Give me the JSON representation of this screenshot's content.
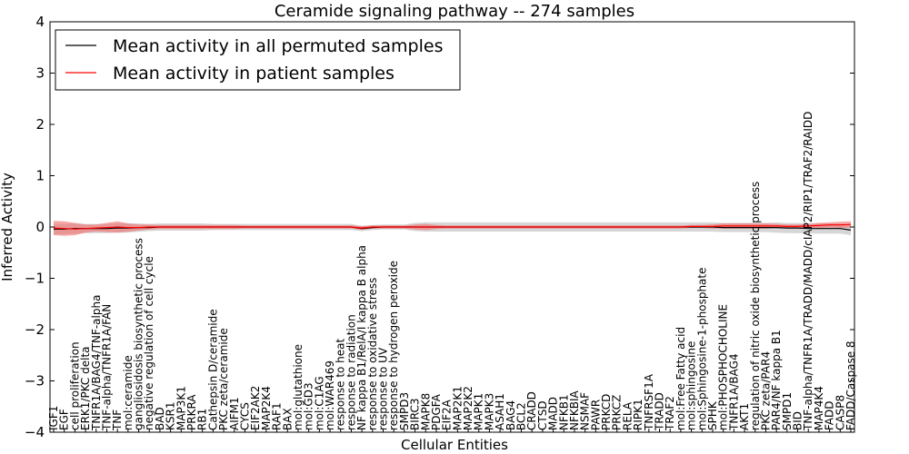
{
  "chart_data": {
    "type": "line",
    "title": "Ceramide signaling pathway -- 274 samples",
    "xlabel": "Cellular Entities",
    "ylabel": "Inferred Activity",
    "ylim": [
      -4,
      4
    ],
    "yticks": [
      "4",
      "3",
      "2",
      "1",
      "0",
      "−1",
      "−2",
      "−3",
      "−4"
    ],
    "grid": false,
    "legend_position": "top-left",
    "categories": [
      "IGF1",
      "EGF",
      "cell proliferation",
      "ERK1/PKC delta",
      "TNFR1A/BAG4/TNF-alpha",
      "TNF-alpha/TNFR1A/FAN",
      "TNF",
      "mol:ceramide",
      "gangliosidosis biosynthetic process",
      "negative regulation of cell cycle",
      "BAD",
      "KSR1",
      "MAP3K1",
      "PRKRA",
      "RB1",
      "Cathepsin D/ceramide",
      "PKC zeta/ceramide",
      "AIFM1",
      "CYCS",
      "EIF2AK2",
      "MAP2K4",
      "RAF1",
      "BAX",
      "mol:glutathione",
      "mol:GD3",
      "mol:C1AG",
      "mol:WAR469",
      "response to heat",
      "response to radiation",
      "NF kappa B1/RelA/I kappa B alpha",
      "response to oxidative stress",
      "response to UV",
      "response to hydrogen peroxide",
      "SMPD3",
      "BIRC3",
      "MAPK8",
      "PDGFA",
      "EIF2A",
      "MAP2K1",
      "MAP2K2",
      "MAPK1",
      "MAPK3",
      "ASAH1",
      "BAG4",
      "BCL2",
      "CRADD",
      "CTSD",
      "MADD",
      "NFKB1",
      "NFKBIA",
      "NSMAF",
      "PAWR",
      "PRKCD",
      "PRKCZ",
      "RELA",
      "RIPK1",
      "TNFRSF1A",
      "TRADD",
      "TRAF2",
      "mol:Free Fatty acid",
      "mol:sphingosine",
      "mol:Sphingosine-1-phosphate",
      "SPHK",
      "mol:PHOSPHOCHOLINE",
      "TNFR1A/BAG4",
      "AKT1",
      "regulation of nitric oxide biosynthetic process",
      "PKC zeta/PAR4",
      "PAR4/NF kappa B1",
      "SMPD1",
      "BID",
      "TNF-alpha/TNFR1A/TRADD/MADD/cIAP2/RIP1/TRAF2/RAIDD",
      "MAP4K4",
      "FADD",
      "CASP8",
      "FADD/Caspase 8"
    ],
    "series": [
      {
        "name": "Mean activity in all permuted samples",
        "color": "#000000",
        "band_color": "#c8c8c8",
        "values": [
          -0.04,
          -0.04,
          -0.03,
          -0.03,
          -0.03,
          -0.03,
          -0.02,
          -0.02,
          -0.01,
          -0.01,
          0,
          0,
          0,
          0,
          0,
          0,
          0,
          0,
          0,
          0,
          0,
          0,
          0,
          0,
          0,
          0,
          0,
          0,
          0,
          -0.03,
          -0.01,
          0,
          0,
          0,
          0,
          0,
          0,
          0,
          0,
          0,
          0,
          0,
          0,
          0,
          0,
          0,
          0,
          0,
          0,
          0,
          0,
          0,
          0,
          0,
          0,
          0,
          0,
          0,
          0,
          0,
          0,
          0,
          0,
          -0.01,
          -0.01,
          -0.01,
          -0.01,
          -0.01,
          -0.01,
          -0.02,
          -0.02,
          -0.03,
          -0.03,
          -0.03,
          -0.03,
          -0.06
        ],
        "spread": [
          0.1,
          0.1,
          0.1,
          0.09,
          0.09,
          0.09,
          0.09,
          0.09,
          0.08,
          0.07,
          0.07,
          0.07,
          0.07,
          0.07,
          0.07,
          0.06,
          0.06,
          0.06,
          0.06,
          0.06,
          0.06,
          0.06,
          0.06,
          0.06,
          0.06,
          0.06,
          0.06,
          0.06,
          0.06,
          0.05,
          0.05,
          0.05,
          0.05,
          0.05,
          0.08,
          0.09,
          0.09,
          0.09,
          0.09,
          0.09,
          0.09,
          0.09,
          0.09,
          0.09,
          0.09,
          0.09,
          0.09,
          0.09,
          0.09,
          0.09,
          0.09,
          0.09,
          0.09,
          0.09,
          0.09,
          0.09,
          0.09,
          0.09,
          0.09,
          0.09,
          0.09,
          0.09,
          0.09,
          0.09,
          0.09,
          0.09,
          0.09,
          0.09,
          0.1,
          0.1,
          0.1,
          0.1,
          0.1,
          0.1,
          0.1,
          0.1
        ]
      },
      {
        "name": "Mean activity in patient samples",
        "color": "#ff0000",
        "band_color": "#f26a6a",
        "values": [
          -0.02,
          -0.03,
          -0.04,
          -0.03,
          -0.02,
          -0.01,
          0,
          -0.01,
          -0.01,
          0,
          0,
          0,
          0,
          0,
          0,
          0,
          0,
          0,
          0,
          0,
          0,
          0,
          0,
          0,
          0,
          0,
          0,
          0,
          0,
          -0.02,
          0,
          0,
          0,
          0,
          0,
          0,
          0,
          0,
          0,
          0,
          0,
          0,
          0,
          0,
          0,
          0,
          0,
          0,
          0,
          0,
          0,
          0,
          0,
          0,
          0,
          0,
          0,
          0,
          0,
          0,
          0.01,
          0.01,
          0.01,
          0.02,
          0.02,
          0.02,
          0.02,
          0.02,
          0.02,
          0.01,
          0.01,
          0.02,
          0.03,
          0.04,
          0.04,
          0.05
        ],
        "spread": [
          0.14,
          0.14,
          0.12,
          0.08,
          0.07,
          0.09,
          0.11,
          0.08,
          0.06,
          0.05,
          0.04,
          0.04,
          0.04,
          0.04,
          0.04,
          0.04,
          0.04,
          0.04,
          0.03,
          0.03,
          0.03,
          0.03,
          0.03,
          0.03,
          0.03,
          0.03,
          0.03,
          0.03,
          0.03,
          0.04,
          0.03,
          0.03,
          0.03,
          0.03,
          0.05,
          0.06,
          0.04,
          0.03,
          0.03,
          0.03,
          0.03,
          0.03,
          0.03,
          0.03,
          0.03,
          0.03,
          0.03,
          0.03,
          0.03,
          0.03,
          0.03,
          0.03,
          0.03,
          0.03,
          0.03,
          0.03,
          0.03,
          0.03,
          0.03,
          0.03,
          0.03,
          0.03,
          0.04,
          0.05,
          0.05,
          0.05,
          0.05,
          0.05,
          0.04,
          0.04,
          0.04,
          0.04,
          0.05,
          0.05,
          0.06,
          0.06
        ]
      }
    ]
  }
}
